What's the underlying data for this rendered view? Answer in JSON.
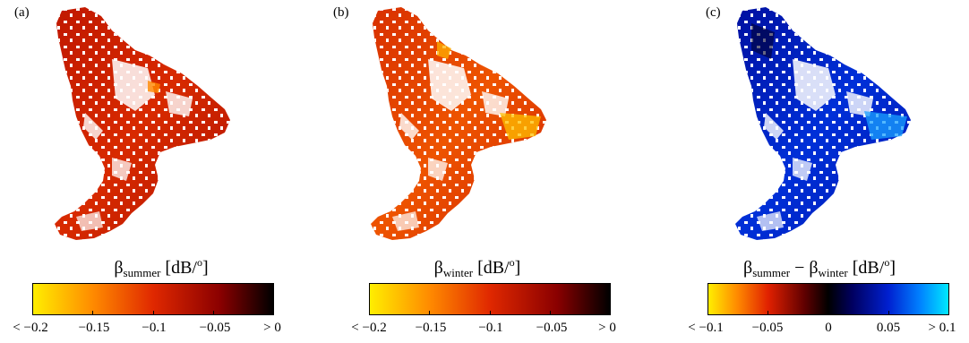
{
  "panels": [
    {
      "letter": "(a)",
      "title_symbol": "β",
      "title_sub": "summer",
      "title_rest": " [dB/",
      "title_sup": "o",
      "title_end": "]",
      "colormap": "hot",
      "ticks": [
        "< −0.2",
        "−0.15",
        "−0.1",
        "−0.05",
        "> 0"
      ],
      "colors": [
        "#ffee00",
        "#ff7a00",
        "#d21a00",
        "#7a0000",
        "#000000"
      ]
    },
    {
      "letter": "(b)",
      "title_symbol": "β",
      "title_sub": "winter",
      "title_rest": " [dB/",
      "title_sup": "o",
      "title_end": "]",
      "colormap": "hot",
      "ticks": [
        "< −0.2",
        "−0.15",
        "−0.1",
        "−0.05",
        "> 0"
      ],
      "colors": [
        "#ffee00",
        "#ff7a00",
        "#d21a00",
        "#7a0000",
        "#000000"
      ]
    },
    {
      "letter": "(c)",
      "title_symbol": "β",
      "title_sub": "summer",
      "title_mid": " − β",
      "title_sub2": "winter",
      "title_rest": " [dB/",
      "title_sup": "o",
      "title_end": "]",
      "colormap": "diverging",
      "ticks": [
        "< −0.1",
        "−0.05",
        "0",
        "0.05",
        "> 0.1"
      ],
      "colors": [
        "#ffee00",
        "#e02000",
        "#000000",
        "#0020d0",
        "#00e0ff"
      ]
    }
  ]
}
